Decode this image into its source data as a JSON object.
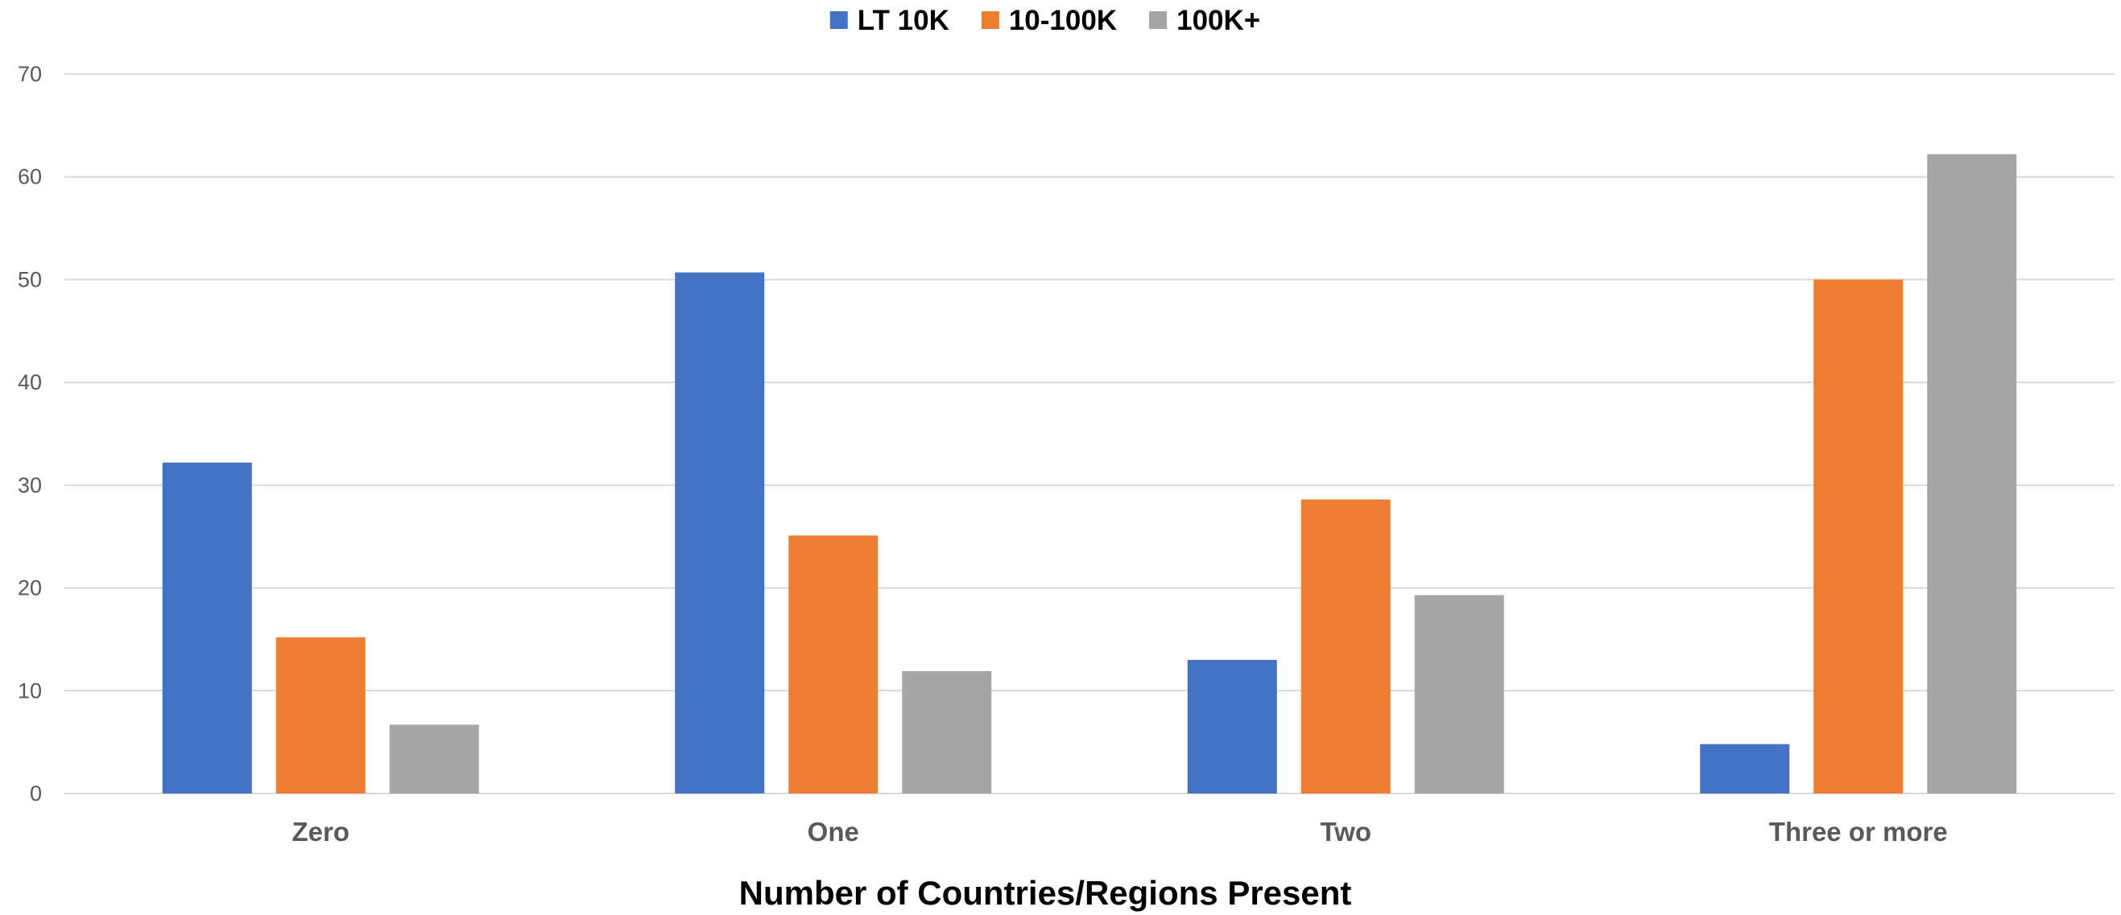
{
  "chart_data": {
    "type": "bar",
    "title": "",
    "xlabel": "Number of Countries/Regions Present",
    "ylabel": "",
    "categories": [
      "Zero",
      "One",
      "Two",
      "Three or more"
    ],
    "series": [
      {
        "name": "LT 10K",
        "color": "#4472C4",
        "values": [
          32.2,
          50.7,
          13.0,
          4.8
        ]
      },
      {
        "name": "10-100K",
        "color": "#ED7D31",
        "values": [
          15.2,
          25.1,
          28.6,
          50.0
        ]
      },
      {
        "name": "100K+",
        "color": "#A5A5A5",
        "values": [
          6.7,
          11.9,
          19.3,
          62.2
        ]
      }
    ],
    "ylim": [
      0,
      70
    ],
    "yticks": [
      0,
      10,
      20,
      30,
      40,
      50,
      60,
      70
    ],
    "grid": true,
    "legend": "top-center"
  }
}
